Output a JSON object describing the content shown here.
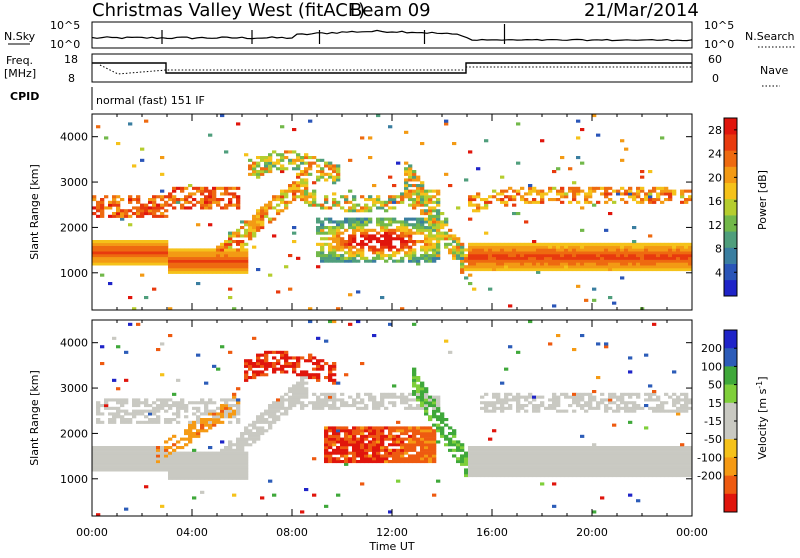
{
  "header": {
    "station": "Christmas Valley West (fitACF)",
    "beam": "Beam 09",
    "date": "21/Mar/2014"
  },
  "noise_panel": {
    "left_label": "N.Sky",
    "left_ticks": [
      "10^5",
      "10^0"
    ],
    "right_label": "N.Search",
    "right_ticks": [
      "10^5",
      "10^0"
    ]
  },
  "freq_panel": {
    "left_label_1": "Freq.",
    "left_label_2": "[MHz]",
    "left_ticks": [
      "18",
      "8"
    ],
    "right_label": "Nave",
    "right_ticks": [
      "60",
      "0"
    ]
  },
  "cpid": {
    "label": "CPID",
    "value": "normal (fast) 151 IF"
  },
  "colors": {
    "power_scale": [
      "#1f24c8",
      "#2a55b8",
      "#3a7ea0",
      "#4f9e7c",
      "#72b84a",
      "#b5cd2e",
      "#f5c21a",
      "#f39a14",
      "#ee6a10",
      "#e83a0e",
      "#e0150c"
    ],
    "velocity_scale": [
      "#e0150c",
      "#ee5a10",
      "#f59a14",
      "#f5c21a",
      "#c9c9c2",
      "#c9c9c2",
      "#7fcf3a",
      "#3fa83a",
      "#2c5cb8",
      "#1f24c8"
    ]
  },
  "chart_data": [
    {
      "type": "heatmap",
      "panel": "power",
      "ylabel": "Slant Range [km]",
      "xlabel": "Time UT",
      "xlim": [
        "00:00",
        "24:00"
      ],
      "ylim": [
        180,
        4500
      ],
      "y_ticks": [
        1000,
        2000,
        3000,
        4000
      ],
      "x_ticks": [
        "00:00",
        "04:00",
        "08:00",
        "12:00",
        "16:00",
        "20:00",
        "00:00"
      ],
      "colorbar": {
        "label": "Power [dB]",
        "range": [
          0,
          30
        ],
        "ticks": [
          4,
          8,
          12,
          16,
          20,
          24,
          28
        ]
      }
    },
    {
      "type": "heatmap",
      "panel": "velocity",
      "ylabel": "Slant Range [km]",
      "xlabel": "Time UT",
      "xlim": [
        "00:00",
        "24:00"
      ],
      "ylim": [
        180,
        4500
      ],
      "y_ticks": [
        1000,
        2000,
        3000,
        4000
      ],
      "x_ticks": [
        "00:00",
        "04:00",
        "08:00",
        "12:00",
        "16:00",
        "20:00",
        "00:00"
      ],
      "colorbar": {
        "label": "Velocity [m s^-1]",
        "range": [
          -250,
          250
        ],
        "ticks": [
          200,
          100,
          50,
          15,
          -15,
          -50,
          -100,
          -200
        ]
      }
    }
  ]
}
